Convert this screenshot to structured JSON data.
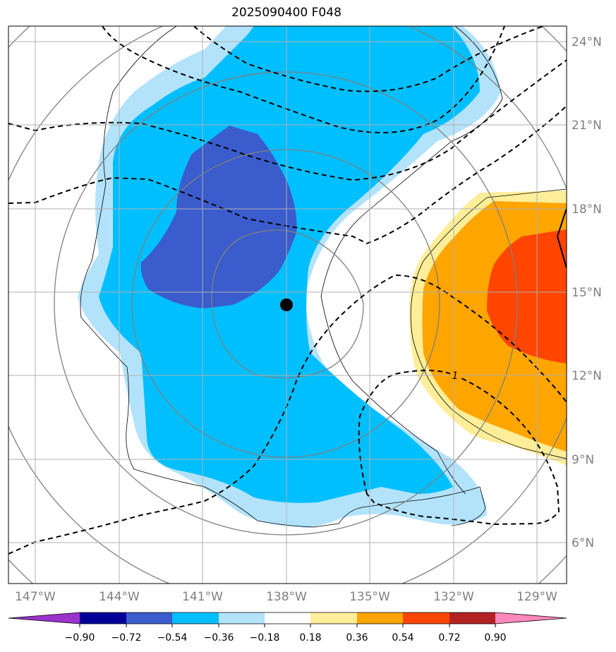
{
  "title": "2025090400 F048",
  "map": {
    "lon_range": [
      -148,
      -128
    ],
    "lat_range": [
      4.5,
      24.5
    ],
    "lon_ticks": [
      {
        "value": -147,
        "label": "147°W"
      },
      {
        "value": -144,
        "label": "144°W"
      },
      {
        "value": -141,
        "label": "141°W"
      },
      {
        "value": -138,
        "label": "138°W"
      },
      {
        "value": -135,
        "label": "135°W"
      },
      {
        "value": -132,
        "label": "132°W"
      },
      {
        "value": -129,
        "label": "129°W"
      }
    ],
    "lat_ticks": [
      {
        "value": 24,
        "label": "24°N"
      },
      {
        "value": 21,
        "label": "21°N"
      },
      {
        "value": 18,
        "label": "18°N"
      },
      {
        "value": 15,
        "label": "15°N"
      },
      {
        "value": 12,
        "label": "12°N"
      },
      {
        "value": 9,
        "label": "9°N"
      },
      {
        "value": 6,
        "label": "6°N"
      }
    ],
    "center": {
      "lon": -138.0,
      "lat": 14.5
    },
    "contour_label": "1",
    "grid": true
  },
  "colorbar": {
    "levels": [
      "−0.90",
      "−0.72",
      "−0.54",
      "−0.36",
      "−0.18",
      "0.18",
      "0.36",
      "0.54",
      "0.72",
      "0.90"
    ],
    "colors": [
      "#9933cc",
      "#000099",
      "#3a5ccc",
      "#00bfff",
      "#b3e3fa",
      "#ffffff",
      "#ffee99",
      "#ffa500",
      "#ff4500",
      "#b22222",
      "#ff88bb"
    ]
  }
}
